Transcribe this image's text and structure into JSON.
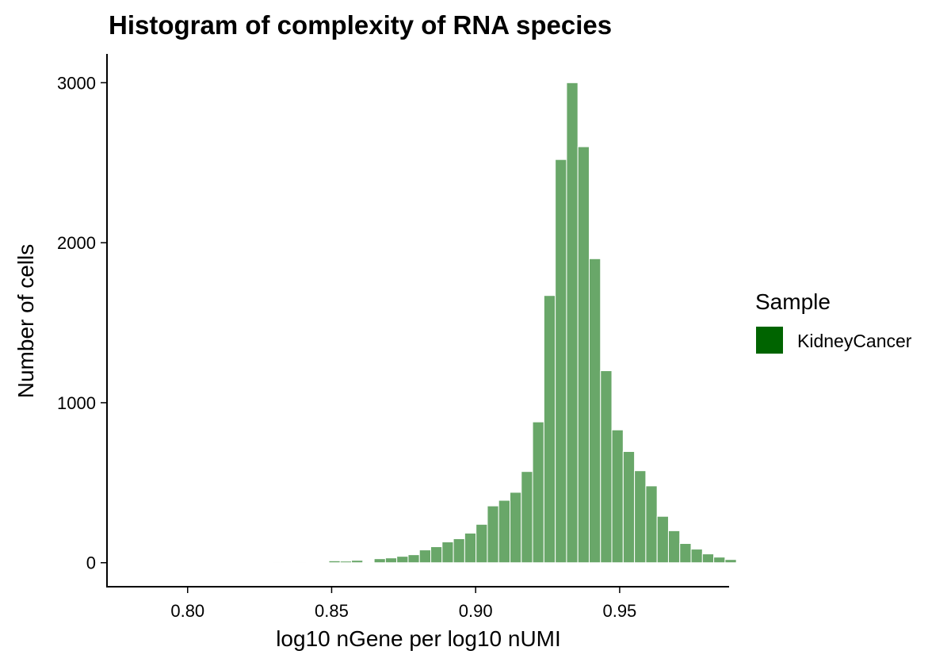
{
  "chart_data": {
    "type": "bar",
    "title": "Histogram of complexity of RNA species",
    "xlabel": "log10 nGene per log10 nUMI",
    "ylabel": "Number of cells",
    "xlim": [
      0.772,
      0.988
    ],
    "ylim": [
      -150,
      3180
    ],
    "xticks": [
      {
        "value": 0.8,
        "label": "0.80"
      },
      {
        "value": 0.85,
        "label": "0.85"
      },
      {
        "value": 0.9,
        "label": "0.90"
      },
      {
        "value": 0.95,
        "label": "0.95"
      }
    ],
    "yticks": [
      {
        "value": 0,
        "label": "0"
      },
      {
        "value": 1000,
        "label": "1000"
      },
      {
        "value": 2000,
        "label": "2000"
      },
      {
        "value": 3000,
        "label": "3000"
      }
    ],
    "bin_width": 0.00393,
    "bin_start": 0.7783,
    "values": [
      1,
      1,
      1,
      1,
      0,
      0,
      0,
      0,
      0,
      0,
      2,
      0,
      0,
      5,
      0,
      5,
      0,
      0,
      12,
      10,
      15,
      5,
      25,
      30,
      40,
      50,
      80,
      100,
      130,
      150,
      185,
      240,
      355,
      390,
      440,
      570,
      880,
      1670,
      2520,
      3000,
      2600,
      1900,
      1200,
      830,
      695,
      575,
      480,
      290,
      200,
      120,
      85,
      55,
      35,
      20
    ],
    "fill_color": "#69A769",
    "legend": {
      "title": "Sample",
      "entries": [
        {
          "label": "KidneyCancer",
          "color": "#006400"
        }
      ],
      "placement": "right"
    },
    "grid": false
  }
}
